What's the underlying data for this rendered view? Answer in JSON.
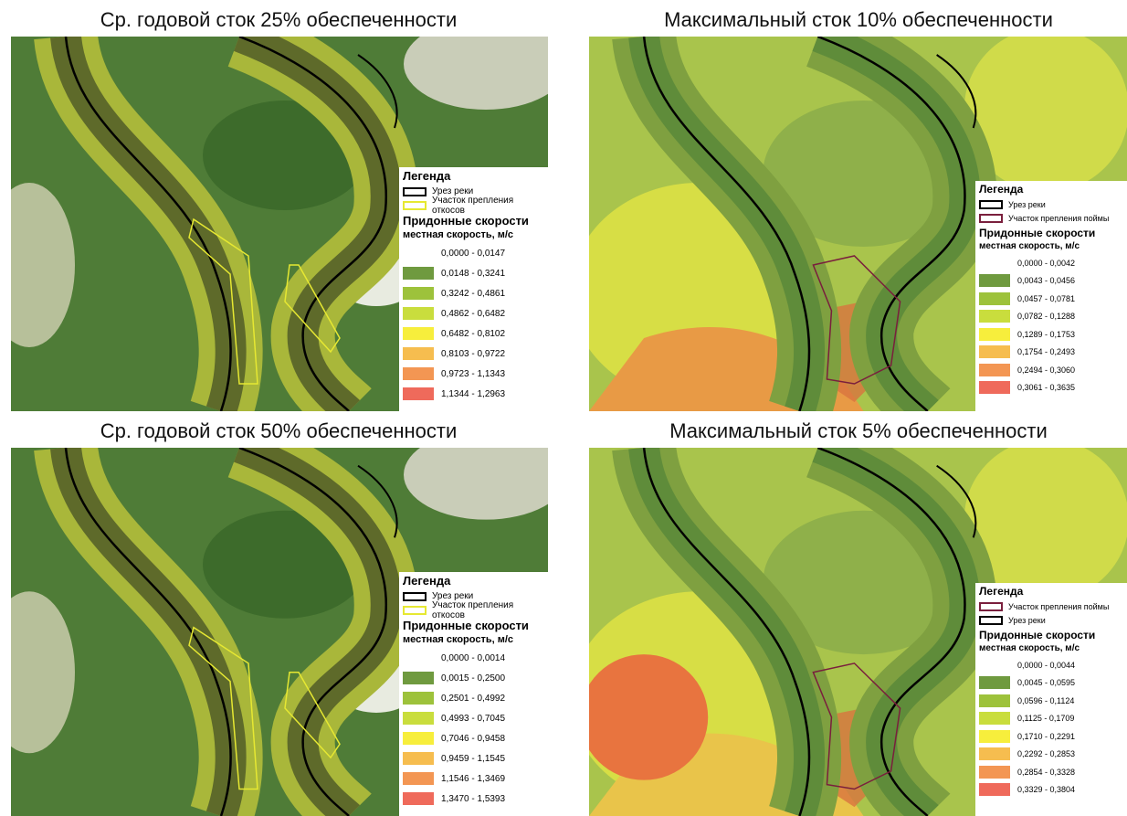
{
  "panels": [
    {
      "title": "Ср. годовой сток 25% обеспеченности",
      "legend": {
        "title": "Легенда",
        "lines": [
          {
            "label": "Урез реки",
            "color": "#000000"
          },
          {
            "label": "Участок препления откосов",
            "color": "#e6e832"
          }
        ],
        "field_title": "Придонные скорости",
        "subtitle": "местная скорость, м/с",
        "classes": [
          {
            "label": "0,0000 - 0,0147",
            "color": "#ffffff"
          },
          {
            "label": "0,0148 - 0,3241",
            "color": "#6f9a3f"
          },
          {
            "label": "0,3242 - 0,4861",
            "color": "#9dc23b"
          },
          {
            "label": "0,4862 - 0,6482",
            "color": "#c9dd3d"
          },
          {
            "label": "0,6482 - 0,8102",
            "color": "#f7ee3c"
          },
          {
            "label": "0,8103 - 0,9722",
            "color": "#f6bd4f"
          },
          {
            "label": "0,9723 - 1,1343",
            "color": "#f39653"
          },
          {
            "label": "1,1344 - 1,2963",
            "color": "#ef6a5b"
          }
        ]
      }
    },
    {
      "title": "Максимальный сток 10% обеспеченности",
      "legend": {
        "title": "Легенда",
        "lines": [
          {
            "label": "Урез реки",
            "color": "#000000"
          },
          {
            "label": "Участок препления поймы",
            "color": "#7a1f3d"
          }
        ],
        "field_title": "Придонные скорости",
        "subtitle": "местная скорость, м/с",
        "classes": [
          {
            "label": "0,0000 - 0,0042",
            "color": "#ffffff"
          },
          {
            "label": "0,0043 - 0,0456",
            "color": "#6f9a3f"
          },
          {
            "label": "0,0457 - 0,0781",
            "color": "#9dc23b"
          },
          {
            "label": "0,0782 - 0,1288",
            "color": "#c9dd3d"
          },
          {
            "label": "0,1289 - 0,1753",
            "color": "#f7ee3c"
          },
          {
            "label": "0,1754 - 0,2493",
            "color": "#f6bd4f"
          },
          {
            "label": "0,2494 - 0,3060",
            "color": "#f39653"
          },
          {
            "label": "0,3061 - 0,3635",
            "color": "#ef6a5b"
          }
        ]
      }
    },
    {
      "title": "Ср. годовой сток 50% обеспеченности",
      "legend": {
        "title": "Легенда",
        "lines": [
          {
            "label": "Урез реки",
            "color": "#000000"
          },
          {
            "label": "Участок препления откосов",
            "color": "#e6e832"
          }
        ],
        "field_title": "Придонные скорости",
        "subtitle": "местная скорость, м/с",
        "classes": [
          {
            "label": "0,0000 - 0,0014",
            "color": "#ffffff"
          },
          {
            "label": "0,0015 - 0,2500",
            "color": "#6f9a3f"
          },
          {
            "label": "0,2501 - 0,4992",
            "color": "#9dc23b"
          },
          {
            "label": "0,4993 - 0,7045",
            "color": "#c9dd3d"
          },
          {
            "label": "0,7046 - 0,9458",
            "color": "#f7ee3c"
          },
          {
            "label": "0,9459 - 1,1545",
            "color": "#f6bd4f"
          },
          {
            "label": "1,1546 - 1,3469",
            "color": "#f39653"
          },
          {
            "label": "1,3470 - 1,5393",
            "color": "#ef6a5b"
          }
        ]
      }
    },
    {
      "title": "Максимальный сток 5% обеспеченности",
      "legend": {
        "title": "Легенда",
        "lines": [
          {
            "label": "Участок препления поймы",
            "color": "#7a1f3d"
          },
          {
            "label": "Урез реки",
            "color": "#000000"
          }
        ],
        "field_title": "Придонные скорости",
        "subtitle": "местная скорость, м/с",
        "classes": [
          {
            "label": "0,0000 - 0,0044",
            "color": "#ffffff"
          },
          {
            "label": "0,0045 - 0,0595",
            "color": "#6f9a3f"
          },
          {
            "label": "0,0596 - 0,1124",
            "color": "#9dc23b"
          },
          {
            "label": "0,1125 - 0,1709",
            "color": "#c9dd3d"
          },
          {
            "label": "0,1710 - 0,2291",
            "color": "#f7ee3c"
          },
          {
            "label": "0,2292 - 0,2853",
            "color": "#f6bd4f"
          },
          {
            "label": "0,2854 - 0,3328",
            "color": "#f39653"
          },
          {
            "label": "0,3329 - 0,3804",
            "color": "#ef6a5b"
          }
        ]
      }
    }
  ]
}
